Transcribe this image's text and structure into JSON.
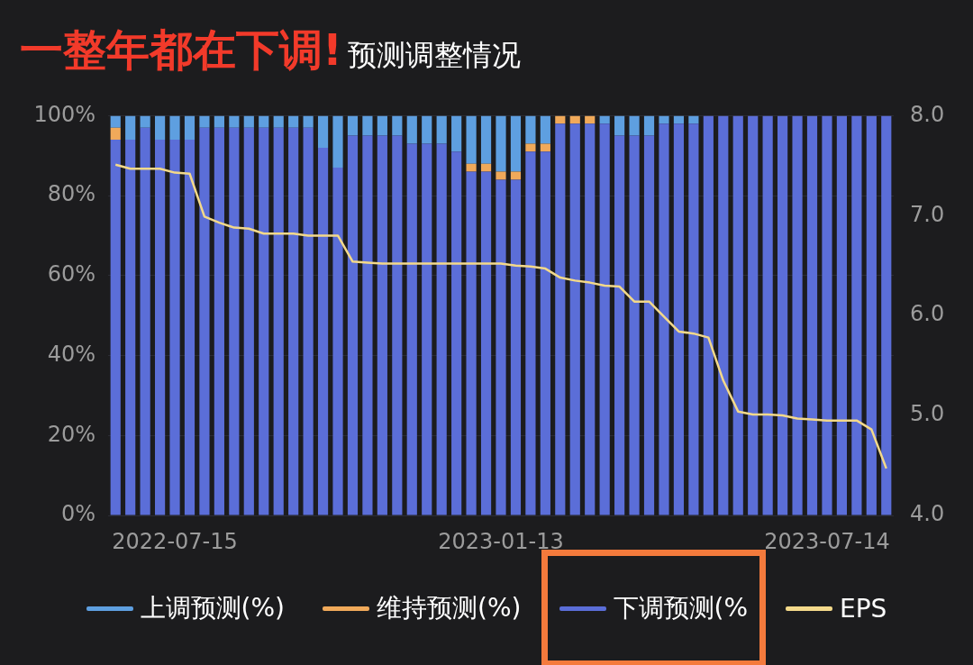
{
  "chart_data": {
    "type": "bar",
    "title": "一整年都在下调!",
    "subtitle": "预测调整情况",
    "categories": [
      null,
      null,
      null,
      null,
      "2022-07-15",
      null,
      null,
      null,
      null,
      null,
      null,
      null,
      null,
      null,
      null,
      null,
      null,
      null,
      null,
      null,
      null,
      null,
      null,
      null,
      null,
      null,
      "2023-01-13",
      null,
      null,
      null,
      null,
      null,
      null,
      null,
      null,
      null,
      null,
      null,
      null,
      null,
      null,
      null,
      null,
      null,
      null,
      null,
      null,
      null,
      "2023-07-14",
      null,
      null,
      null,
      null
    ],
    "stacked": true,
    "series": [
      {
        "name": "下调预测(%",
        "color": "#5b6ed8",
        "values": [
          94,
          94,
          97,
          94,
          94,
          94,
          97,
          97,
          97,
          97,
          97,
          97,
          97,
          97,
          92,
          87,
          95,
          95,
          95,
          95,
          93,
          93,
          93,
          91,
          86,
          86,
          84,
          84,
          91,
          91,
          98,
          98,
          98,
          98,
          95,
          95,
          95,
          98,
          98,
          98,
          100,
          100,
          100,
          100,
          100,
          100,
          100,
          100,
          100,
          100,
          100,
          100,
          100
        ]
      },
      {
        "name": "维持预测(%)",
        "color": "#f0a95a",
        "values": [
          3,
          0,
          0,
          0,
          0,
          0,
          0,
          0,
          0,
          0,
          0,
          0,
          0,
          0,
          0,
          0,
          0,
          0,
          0,
          0,
          0,
          0,
          0,
          0,
          2,
          2,
          2,
          2,
          2,
          2,
          2,
          2,
          2,
          0,
          0,
          0,
          0,
          0,
          0,
          0,
          0,
          0,
          0,
          0,
          0,
          0,
          0,
          0,
          0,
          0,
          0,
          0,
          0
        ]
      },
      {
        "name": "上调预测(%)",
        "color": "#5e9fe0",
        "values": [
          3,
          6,
          3,
          6,
          6,
          6,
          3,
          3,
          3,
          3,
          3,
          3,
          3,
          3,
          8,
          13,
          5,
          5,
          5,
          5,
          7,
          7,
          7,
          9,
          12,
          12,
          14,
          14,
          7,
          7,
          0,
          0,
          0,
          2,
          5,
          5,
          5,
          2,
          2,
          2,
          0,
          0,
          0,
          0,
          0,
          0,
          0,
          0,
          0,
          0,
          0,
          0,
          0
        ]
      },
      {
        "name": "EPS",
        "type": "line",
        "axis": "y2",
        "color": "#f3d98a",
        "values": [
          7.51,
          7.47,
          7.47,
          7.47,
          7.43,
          7.42,
          6.99,
          6.93,
          6.88,
          6.87,
          6.82,
          6.82,
          6.82,
          6.8,
          6.8,
          6.8,
          6.54,
          6.53,
          6.52,
          6.52,
          6.52,
          6.52,
          6.52,
          6.52,
          6.52,
          6.52,
          6.52,
          6.5,
          6.49,
          6.47,
          6.38,
          6.35,
          6.33,
          6.3,
          6.29,
          6.14,
          6.14,
          5.99,
          5.84,
          5.82,
          5.78,
          5.35,
          5.04,
          5.01,
          5.01,
          5,
          4.97,
          4.96,
          4.95,
          4.95,
          4.95,
          4.86,
          4.47
        ]
      }
    ],
    "ylim": [
      0,
      100
    ],
    "yticks": [
      {
        "value": 0,
        "label": "0%"
      },
      {
        "value": 20,
        "label": "20%"
      },
      {
        "value": 40,
        "label": "40%"
      },
      {
        "value": 60,
        "label": "60%"
      },
      {
        "value": 80,
        "label": "80%"
      },
      {
        "value": 100,
        "label": "100%"
      }
    ],
    "y2lim": [
      4,
      8
    ],
    "y2ticks": [
      {
        "value": 4,
        "label": "4.0"
      },
      {
        "value": 5,
        "label": "5.0"
      },
      {
        "value": 6,
        "label": "6.0"
      },
      {
        "value": 7,
        "label": "7.0"
      },
      {
        "value": 8,
        "label": "8.0"
      }
    ],
    "grid": "y",
    "legend": "bottom",
    "marker": "none"
  }
}
